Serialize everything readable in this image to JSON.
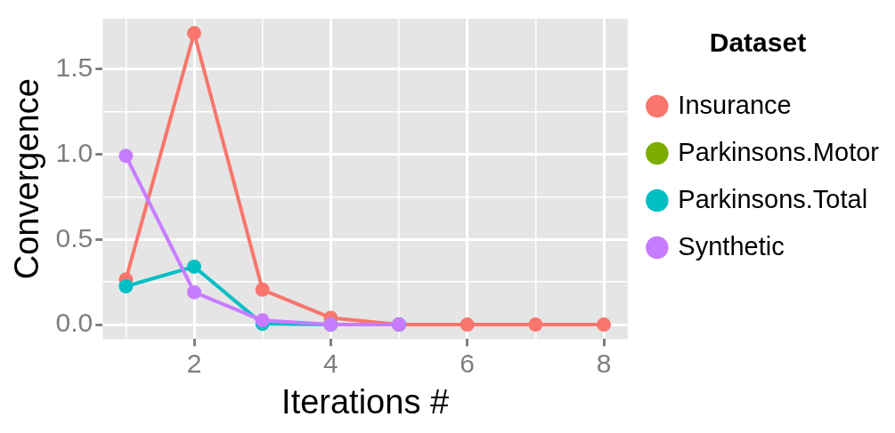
{
  "chart_data": {
    "type": "line",
    "xlabel": "Iterations #",
    "ylabel": "Convergence",
    "legend_title": "Dataset",
    "legend": "right",
    "grid": true,
    "marker": "circle",
    "line_style": "solid",
    "xlim": [
      0.66,
      8.35
    ],
    "xticks": [
      {
        "value": 1,
        "label": null
      },
      2,
      {
        "value": 3,
        "label": null
      },
      4,
      {
        "value": 5,
        "label": null
      },
      6,
      {
        "value": 7,
        "label": null
      },
      8
    ],
    "ylim": [
      -0.085,
      1.795
    ],
    "yticks": [
      {
        "value": 0,
        "label": "0.0"
      },
      {
        "value": 0.25,
        "label": null
      },
      0.5,
      {
        "value": 0.75,
        "label": null
      },
      {
        "value": 1,
        "label": "1.0"
      },
      {
        "value": 1.25,
        "label": null
      },
      1.5
    ],
    "series": [
      {
        "name": "Insurance",
        "color": "#f8766d",
        "x": [
          1,
          2,
          3,
          4,
          5,
          6,
          7,
          8
        ],
        "values": [
          0.265,
          1.71,
          0.205,
          0.04,
          0,
          0,
          0,
          0
        ]
      },
      {
        "name": "Parkinsons.Motor",
        "color": "#7cae00"
      },
      {
        "name": "Parkinsons.Total",
        "color": "#00bfc4",
        "x": [
          1,
          2,
          3,
          4,
          5
        ],
        "values": [
          0.225,
          0.34,
          0.005,
          0,
          0
        ]
      },
      {
        "name": "Synthetic",
        "color": "#c77cff",
        "x": [
          1,
          2,
          3,
          4,
          5
        ],
        "values": [
          0.99,
          0.19,
          0.025,
          0,
          0
        ]
      }
    ]
  }
}
